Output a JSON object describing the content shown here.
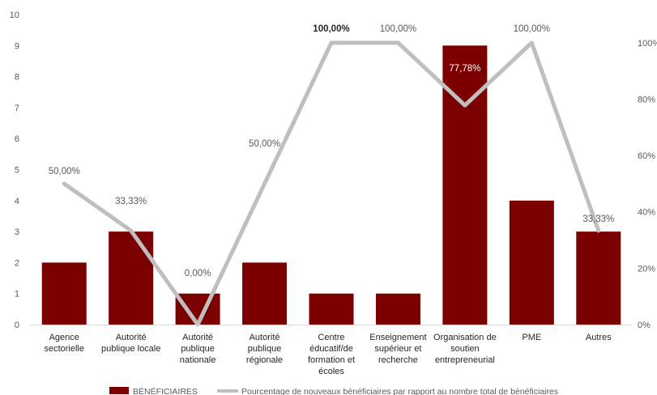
{
  "chart_data": {
    "type": "bar",
    "categories": [
      [
        "Agence",
        "sectorielle"
      ],
      [
        "Autorité",
        "publique locale"
      ],
      [
        "Autorité",
        "publique",
        "nationale"
      ],
      [
        "Autorité",
        "publique",
        "régionale"
      ],
      [
        "Centre",
        "éducatif/de",
        "formation et",
        "écoles"
      ],
      [
        "Enseignement",
        "supérieur et",
        "recherche"
      ],
      [
        "Organisation de",
        "soutien",
        "entrepreneurial"
      ],
      [
        "PME"
      ],
      [
        "Autres"
      ]
    ],
    "series": [
      {
        "name": "BÉNÉFICIAIRES",
        "type": "bar",
        "axis": "left",
        "color": "#7b0000",
        "values": [
          2,
          3,
          1,
          2,
          1,
          1,
          9,
          4,
          3
        ]
      },
      {
        "name": "Pourcentage de nouveaux bénéficiaires par rapport au nombre total de bénéficiaires",
        "type": "line",
        "axis": "right",
        "color": "#bfbfbf",
        "values": [
          50.0,
          33.33,
          0.0,
          50.0,
          100.0,
          100.0,
          77.78,
          100.0,
          33.33
        ],
        "labels": [
          "50,00%",
          "33,33%",
          "0,00%",
          "50,00%",
          "100,00%",
          "100,00%",
          "77,78%",
          "100,00%",
          "33,33%"
        ]
      }
    ],
    "y_left": {
      "min": 0,
      "max": 10,
      "ticks": [
        "0",
        "1",
        "2",
        "3",
        "4",
        "5",
        "6",
        "7",
        "8",
        "9",
        "10"
      ]
    },
    "y_right": {
      "min": 0,
      "max": 110,
      "ticks": [
        "0%",
        "20%",
        "40%",
        "60%",
        "80%",
        "100%"
      ]
    },
    "legend": {
      "position": "bottom",
      "items": [
        "BÉNÉFICIAIRES",
        "Pourcentage de nouveaux bénéficiaires par rapport au nombre total de bénéficiaires"
      ]
    },
    "grid": false
  }
}
